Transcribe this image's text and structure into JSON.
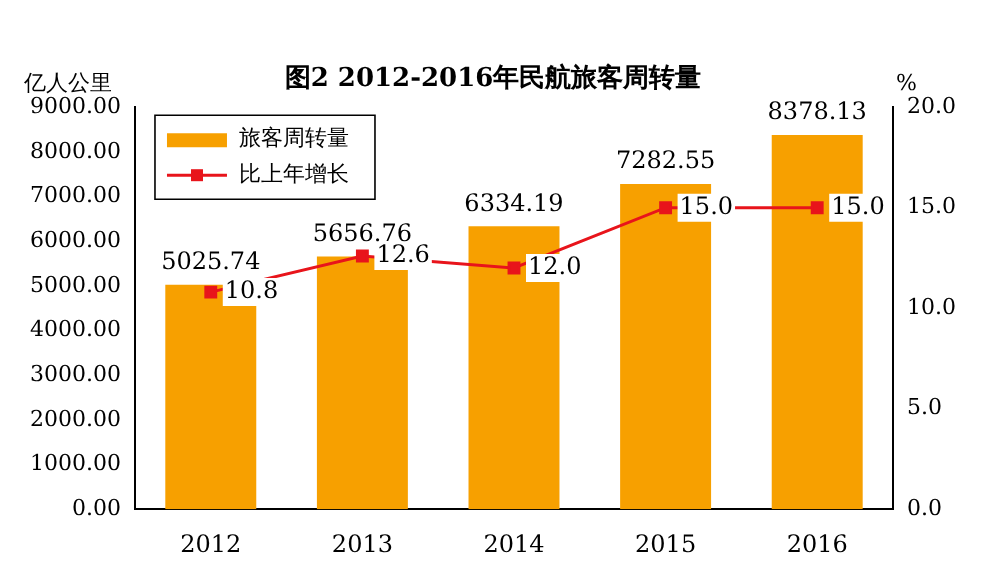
{
  "chart_data": {
    "type": "bar",
    "title": "图2 2012-2016年民航旅客周转量",
    "ylabel": "亿人公里",
    "y2label": "%",
    "categories": [
      "2012",
      "2013",
      "2014",
      "2015",
      "2016"
    ],
    "series": [
      {
        "name": "旅客周转量",
        "color": "#f7a000",
        "values": [
          5025.74,
          5656.76,
          6334.19,
          7282.55,
          8378.13
        ],
        "value_labels": [
          "5025.74",
          "5656.76",
          "6334.19",
          "7282.55",
          "8378.13"
        ]
      },
      {
        "name": "比上年增长",
        "type": "line",
        "axis": "y2",
        "color": "#e8141b",
        "marker": "square",
        "values": [
          10.8,
          12.6,
          12.0,
          15.0,
          15.0
        ],
        "value_labels": [
          "10.8",
          "12.6",
          "12.0",
          "15.0",
          "15.0"
        ]
      }
    ],
    "ylim": [
      0,
      9000
    ],
    "yticks": [
      {
        "value": 0,
        "label": "0.00"
      },
      {
        "value": 1000,
        "label": "1000.00"
      },
      {
        "value": 2000,
        "label": "2000.00"
      },
      {
        "value": 3000,
        "label": "3000.00"
      },
      {
        "value": 4000,
        "label": "4000.00"
      },
      {
        "value": 5000,
        "label": "5000.00"
      },
      {
        "value": 6000,
        "label": "6000.00"
      },
      {
        "value": 7000,
        "label": "7000.00"
      },
      {
        "value": 8000,
        "label": "8000.00"
      },
      {
        "value": 9000,
        "label": "9000.00"
      }
    ],
    "y2lim": [
      0,
      20
    ],
    "y2ticks": [
      {
        "value": 0,
        "label": "0.0"
      },
      {
        "value": 5,
        "label": "5.0"
      },
      {
        "value": 10,
        "label": "10.0"
      },
      {
        "value": 15,
        "label": "15.0"
      },
      {
        "value": 20,
        "label": "20.0"
      }
    ],
    "legend": "top left",
    "grid": false
  }
}
